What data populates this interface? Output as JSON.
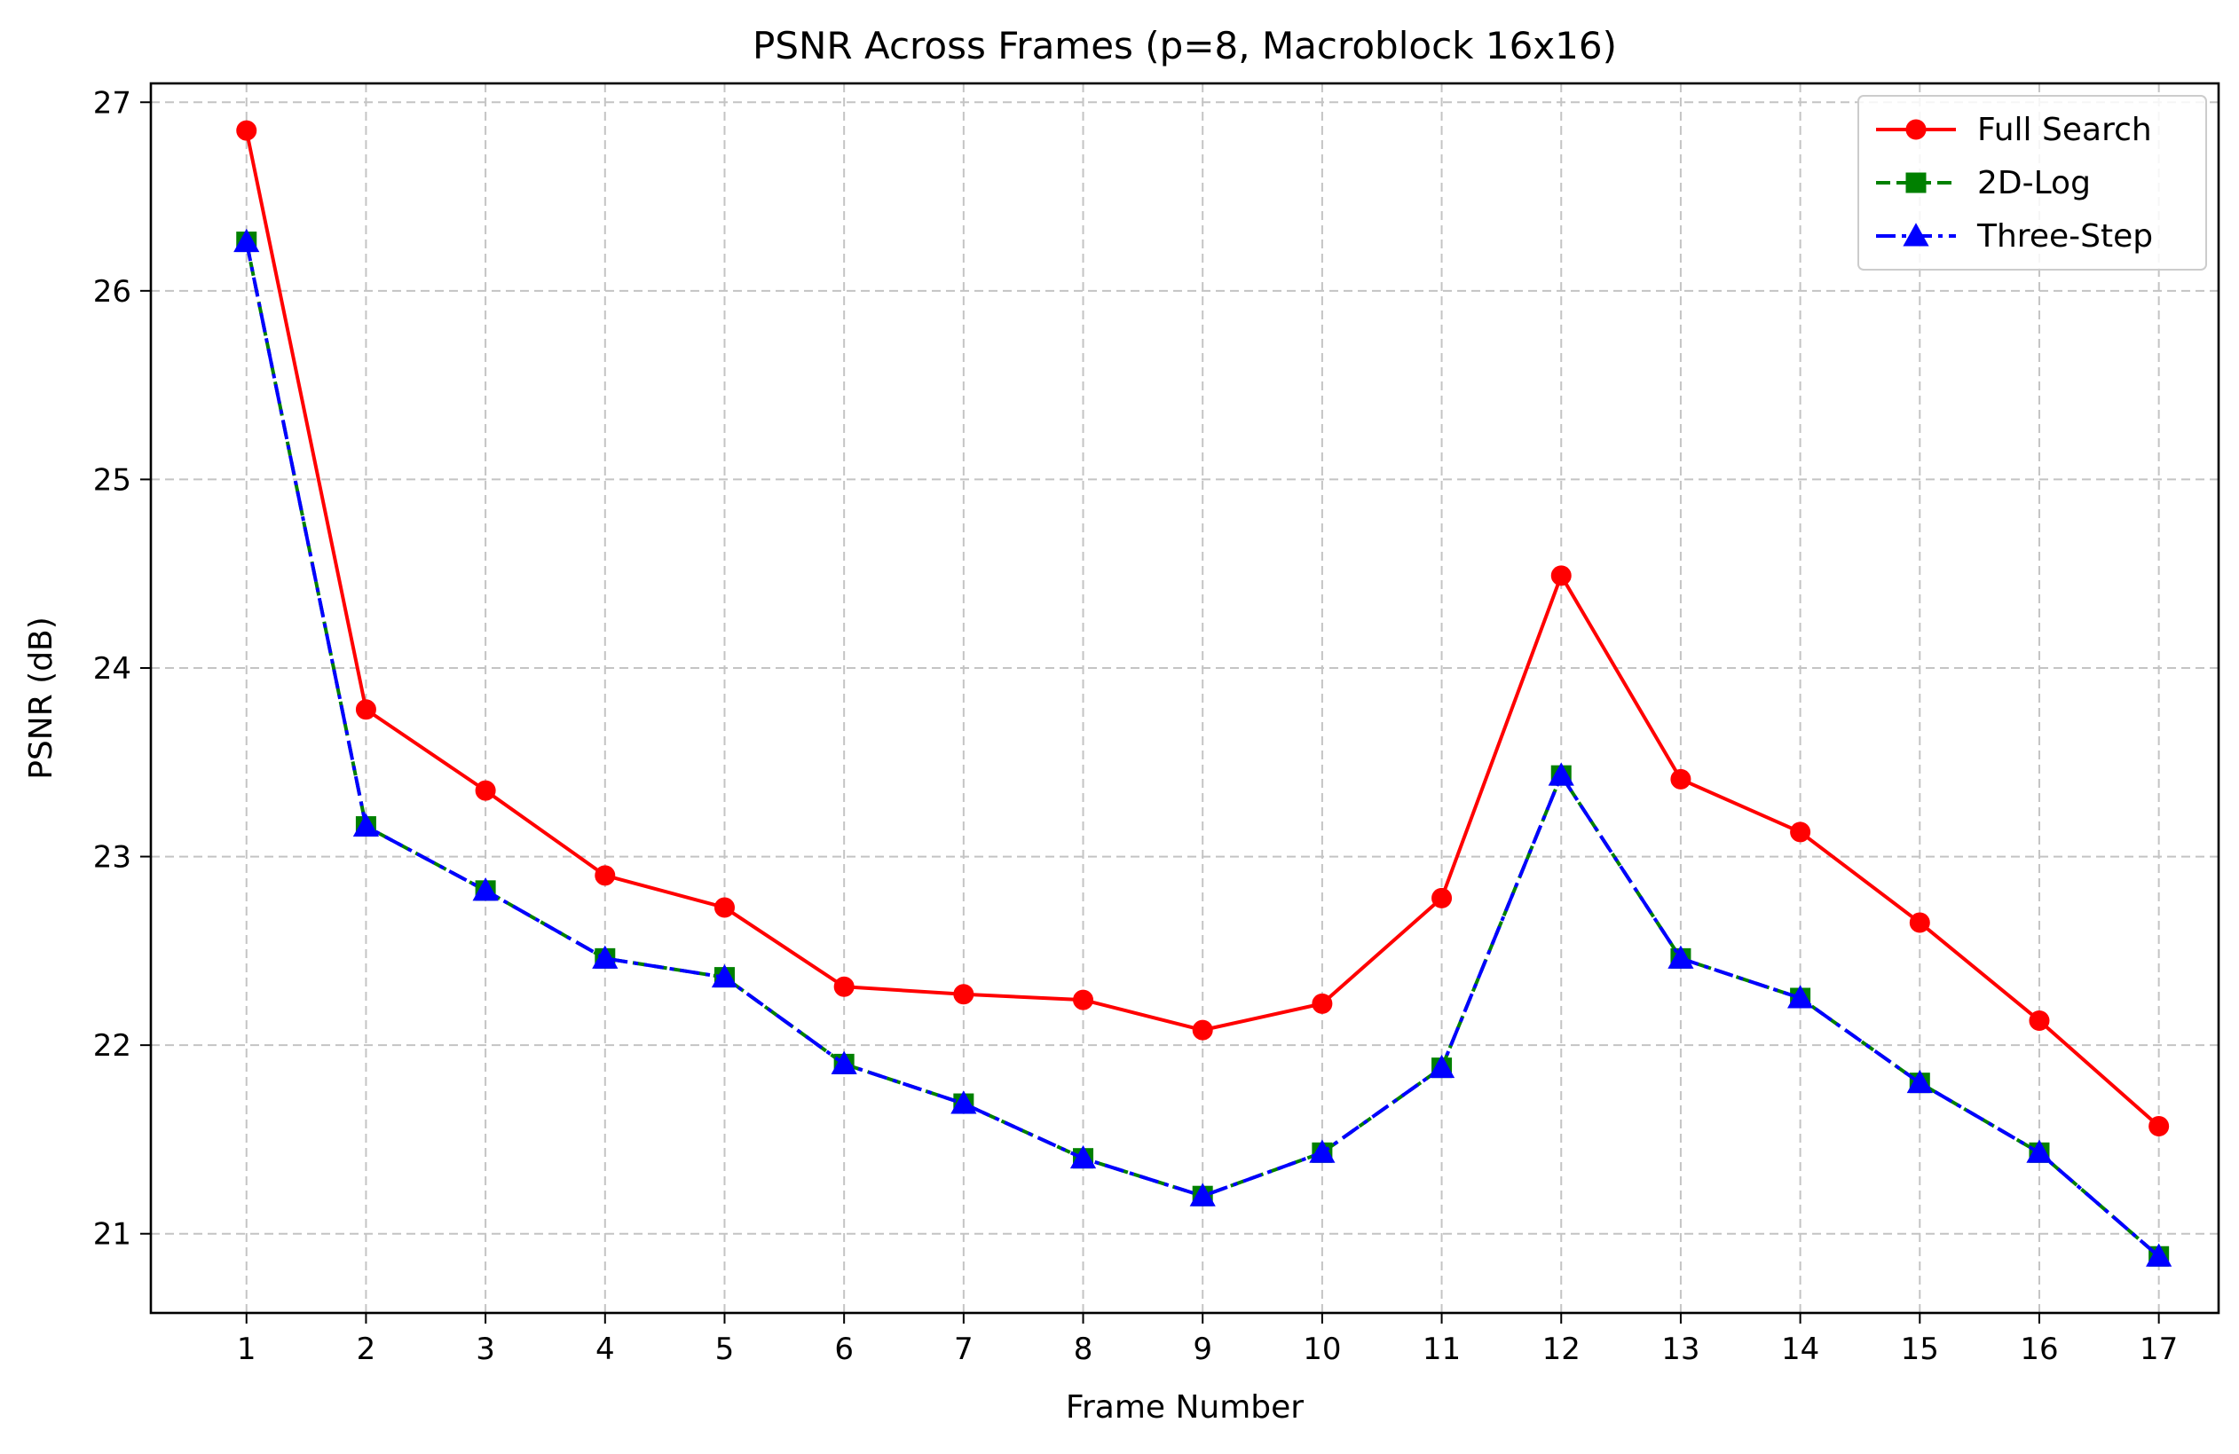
{
  "chart_data": {
    "type": "line",
    "title": "PSNR Across Frames (p=8, Macroblock 16x16)",
    "xlabel": "Frame Number",
    "ylabel": "PSNR (dB)",
    "x": [
      1,
      2,
      3,
      4,
      5,
      6,
      7,
      8,
      9,
      10,
      11,
      12,
      13,
      14,
      15,
      16,
      17
    ],
    "xticks": [
      "1",
      "2",
      "3",
      "4",
      "5",
      "6",
      "7",
      "8",
      "9",
      "10",
      "11",
      "12",
      "13",
      "14",
      "15",
      "16",
      "17"
    ],
    "yticks": [
      "21",
      "22",
      "23",
      "24",
      "25",
      "26",
      "27"
    ],
    "xlim": [
      0.2,
      17.5
    ],
    "ylim": [
      20.58,
      27.1
    ],
    "grid": true,
    "legend_position": "top-right",
    "series": [
      {
        "name": "Full Search",
        "color": "#ff0000",
        "line_style": "solid",
        "marker": "circle",
        "values": [
          26.85,
          23.78,
          23.35,
          22.9,
          22.73,
          22.31,
          22.27,
          22.24,
          22.08,
          22.22,
          22.78,
          24.49,
          23.41,
          23.13,
          22.65,
          22.13,
          21.57
        ]
      },
      {
        "name": "2D-Log",
        "color": "#008000",
        "line_style": "dashed",
        "marker": "square",
        "values": [
          26.26,
          23.16,
          22.82,
          22.46,
          22.36,
          21.9,
          21.69,
          21.4,
          21.2,
          21.43,
          21.88,
          23.43,
          22.46,
          22.25,
          21.8,
          21.43,
          20.88
        ]
      },
      {
        "name": "Three-Step",
        "color": "#0000ff",
        "line_style": "dashdot",
        "marker": "triangle",
        "values": [
          26.26,
          23.16,
          22.82,
          22.46,
          22.36,
          21.9,
          21.69,
          21.4,
          21.2,
          21.43,
          21.88,
          23.43,
          22.46,
          22.25,
          21.8,
          21.43,
          20.88
        ]
      }
    ]
  }
}
